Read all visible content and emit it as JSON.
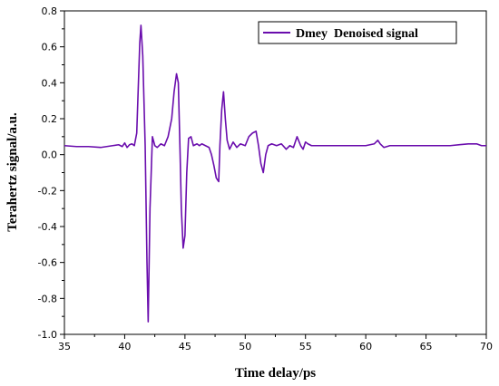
{
  "chart_data": {
    "type": "line",
    "title": "",
    "xlabel": "Time delay/ps",
    "ylabel": "Terahertz signal/a.u.",
    "xlim": [
      35,
      70
    ],
    "ylim": [
      -1.0,
      0.8
    ],
    "xticks": [
      35,
      40,
      45,
      50,
      55,
      60,
      65,
      70
    ],
    "xtick_labels": [
      "35",
      "40",
      "45",
      "50",
      "55",
      "60",
      "65",
      "70"
    ],
    "yticks": [
      -1.0,
      -0.8,
      -0.6,
      -0.4,
      -0.2,
      0.0,
      0.2,
      0.4,
      0.6,
      0.8
    ],
    "ytick_labels": [
      "-1.0",
      "-0.8",
      "-0.6",
      "-0.4",
      "-0.2",
      "0.0",
      "0.2",
      "0.4",
      "0.6",
      "0.8"
    ],
    "grid": false,
    "legend": {
      "placement": "top-right",
      "entries": [
        "Dmey  Denoised signal"
      ]
    },
    "series": [
      {
        "name": "Dmey  Denoised signal",
        "color": "#6a0dad",
        "x": [
          35.0,
          36.0,
          37.0,
          38.0,
          38.5,
          39.0,
          39.5,
          39.8,
          40.0,
          40.2,
          40.4,
          40.6,
          40.8,
          41.0,
          41.1,
          41.25,
          41.35,
          41.5,
          41.7,
          41.85,
          41.95,
          42.1,
          42.3,
          42.5,
          42.7,
          43.0,
          43.3,
          43.6,
          43.9,
          44.1,
          44.3,
          44.45,
          44.6,
          44.7,
          44.85,
          45.0,
          45.15,
          45.3,
          45.5,
          45.7,
          46.0,
          46.2,
          46.4,
          46.7,
          47.0,
          47.2,
          47.4,
          47.6,
          47.8,
          47.9,
          48.05,
          48.2,
          48.35,
          48.5,
          48.7,
          49.0,
          49.3,
          49.6,
          50.0,
          50.3,
          50.6,
          50.9,
          51.1,
          51.3,
          51.5,
          51.7,
          51.9,
          52.2,
          52.6,
          53.0,
          53.4,
          53.7,
          54.0,
          54.3,
          54.6,
          54.8,
          55.0,
          55.2,
          55.5,
          55.8,
          56.5,
          58.0,
          60.0,
          60.7,
          61.0,
          61.2,
          61.5,
          62.0,
          63.0,
          65.0,
          67.0,
          68.5,
          69.2,
          69.6,
          70.0
        ],
        "y": [
          0.05,
          0.045,
          0.045,
          0.04,
          0.045,
          0.05,
          0.055,
          0.045,
          0.065,
          0.04,
          0.055,
          0.06,
          0.05,
          0.12,
          0.32,
          0.62,
          0.72,
          0.55,
          0.05,
          -0.6,
          -0.93,
          -0.3,
          0.1,
          0.05,
          0.04,
          0.06,
          0.05,
          0.1,
          0.2,
          0.35,
          0.45,
          0.4,
          0.0,
          -0.3,
          -0.52,
          -0.45,
          -0.1,
          0.09,
          0.1,
          0.05,
          0.06,
          0.05,
          0.06,
          0.05,
          0.04,
          0.0,
          -0.06,
          -0.13,
          -0.15,
          0.05,
          0.25,
          0.35,
          0.2,
          0.08,
          0.03,
          0.07,
          0.04,
          0.06,
          0.05,
          0.1,
          0.12,
          0.13,
          0.05,
          -0.05,
          -0.1,
          0.0,
          0.05,
          0.06,
          0.05,
          0.06,
          0.03,
          0.05,
          0.04,
          0.1,
          0.05,
          0.03,
          0.07,
          0.06,
          0.05,
          0.05,
          0.05,
          0.05,
          0.05,
          0.06,
          0.08,
          0.06,
          0.04,
          0.05,
          0.05,
          0.05,
          0.05,
          0.06,
          0.06,
          0.05,
          0.05
        ]
      }
    ]
  }
}
